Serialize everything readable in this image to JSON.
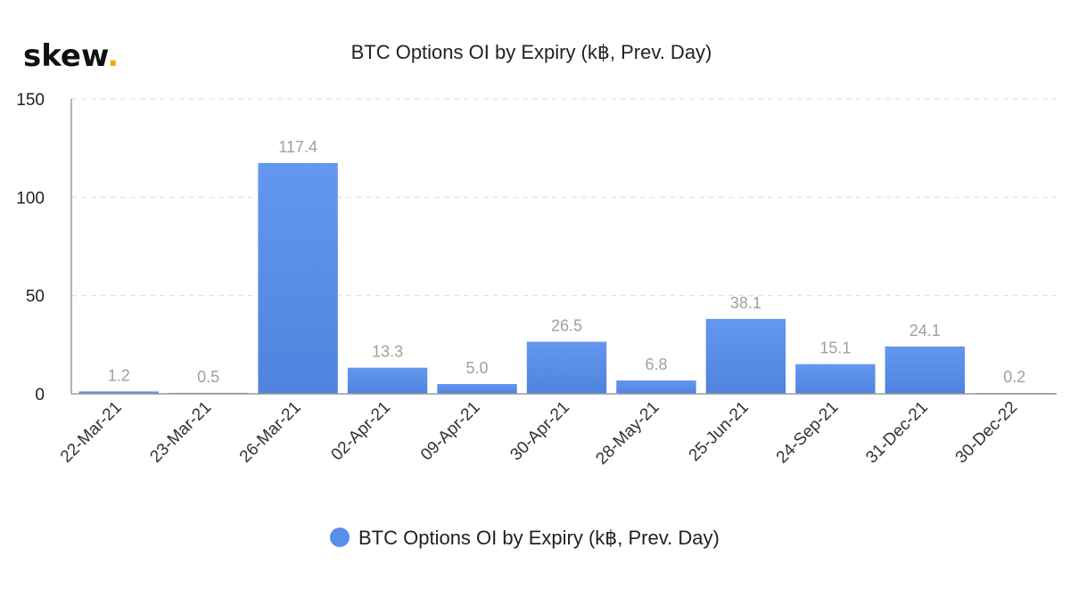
{
  "brand": {
    "name": "skew",
    "dot": ".",
    "dot_color": "#f2a900"
  },
  "chart_data": {
    "type": "bar",
    "title": "BTC Options OI by Expiry (k฿, Prev. Day)",
    "xlabel": "",
    "ylabel": "",
    "categories": [
      "22-Mar-21",
      "23-Mar-21",
      "26-Mar-21",
      "02-Apr-21",
      "09-Apr-21",
      "30-Apr-21",
      "28-May-21",
      "25-Jun-21",
      "24-Sep-21",
      "31-Dec-21",
      "30-Dec-22"
    ],
    "series": [
      {
        "name": "BTC Options OI by Expiry (k฿, Prev. Day)",
        "values": [
          1.2,
          0.5,
          117.4,
          13.3,
          5.0,
          26.5,
          6.8,
          38.1,
          15.1,
          24.1,
          0.2
        ],
        "labels": [
          "1.2",
          "0.5",
          "117.4",
          "13.3",
          "5.0",
          "26.5",
          "6.8",
          "38.1",
          "15.1",
          "24.1",
          "0.2"
        ],
        "color": "#5a8fea"
      }
    ],
    "ylim": [
      0,
      150
    ],
    "yticks": [
      0,
      50,
      100,
      150
    ],
    "ytick_labels": [
      "0",
      "50",
      "100",
      "150"
    ],
    "grid": true,
    "legend_position": "bottom-center"
  }
}
